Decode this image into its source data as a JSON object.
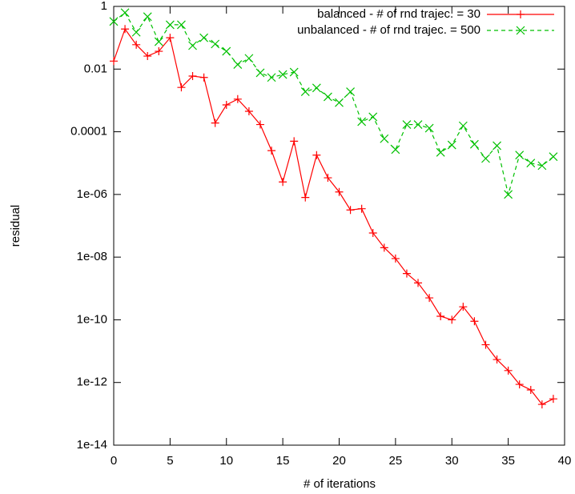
{
  "chart_data": {
    "type": "line",
    "xlabel": "# of iterations",
    "ylabel": "residual",
    "x": [
      0,
      1,
      2,
      3,
      4,
      5,
      6,
      7,
      8,
      9,
      10,
      11,
      12,
      13,
      14,
      15,
      16,
      17,
      18,
      19,
      20,
      21,
      22,
      23,
      24,
      25,
      26,
      27,
      28,
      29,
      30,
      31,
      32,
      33,
      34,
      35,
      36,
      37,
      38,
      39
    ],
    "series": [
      {
        "name": "balanced - # of rnd trajec. = 30",
        "color": "#ff0000",
        "marker": "+",
        "line_style": "solid",
        "values": [
          0.018,
          0.19,
          0.06,
          0.026,
          0.037,
          0.1,
          0.0026,
          0.006,
          0.0054,
          0.00019,
          0.00072,
          0.0011,
          0.00045,
          0.00017,
          2.5e-05,
          2.5e-06,
          5e-05,
          8e-07,
          1.8e-05,
          3.4e-06,
          1.2e-06,
          3.2e-07,
          3.5e-07,
          5.9e-08,
          2e-08,
          9e-09,
          3e-09,
          1.5e-09,
          5e-10,
          1.3e-10,
          1e-10,
          2.6e-10,
          9e-11,
          1.6e-11,
          5.4e-12,
          2.4e-12,
          8.7e-13,
          5.8e-13,
          2e-13,
          3e-13
        ]
      },
      {
        "name": "unbalanced - # of rnd trajec. = 500",
        "color": "#00c000",
        "marker": "x",
        "line_style": "dashed",
        "values": [
          0.33,
          0.63,
          0.15,
          0.47,
          0.075,
          0.26,
          0.26,
          0.056,
          0.1,
          0.063,
          0.037,
          0.014,
          0.022,
          0.0076,
          0.0054,
          0.0067,
          0.008,
          0.0019,
          0.0025,
          0.0013,
          0.00085,
          0.0019,
          0.00021,
          0.0003,
          6e-05,
          2.7e-05,
          0.00017,
          0.00017,
          0.00013,
          2.2e-05,
          3.8e-05,
          0.000155,
          4e-05,
          1.4e-05,
          3.6e-05,
          1e-06,
          1.8e-05,
          1e-05,
          8.3e-06,
          1.6e-05
        ]
      }
    ],
    "xlim": [
      0,
      40
    ],
    "xticks": [
      0,
      5,
      10,
      15,
      20,
      25,
      30,
      35,
      40
    ],
    "ylim": [
      1e-14,
      1
    ],
    "log_y": true,
    "yticks": [
      1,
      0.01,
      0.0001,
      {
        "value": 1e-06,
        "label": "1e-06"
      },
      {
        "value": 1e-08,
        "label": "1e-08"
      },
      {
        "value": 1e-10,
        "label": "1e-10"
      },
      {
        "value": 1e-12,
        "label": "1e-12"
      },
      {
        "value": 1e-14,
        "label": "1e-14"
      }
    ],
    "legend": "top right"
  }
}
